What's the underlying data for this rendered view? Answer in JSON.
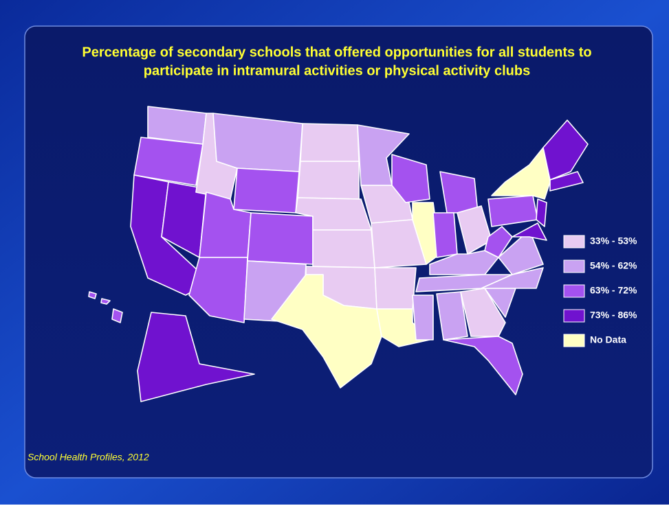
{
  "title": [
    "Percentage of secondary schools that offered opportunities for all students to",
    "participate in intramural activities or physical activity clubs"
  ],
  "legend": [
    {
      "label": "33% - 53%",
      "color": "#e8cbf2"
    },
    {
      "label": "54% - 62%",
      "color": "#c9a2f2"
    },
    {
      "label": "63% - 72%",
      "color": "#a452ef"
    },
    {
      "label": "73% - 86%",
      "color": "#7012cf"
    },
    {
      "label": "No Data",
      "color": "#ffffc4"
    }
  ],
  "source": "School Health Profiles, 2012"
}
